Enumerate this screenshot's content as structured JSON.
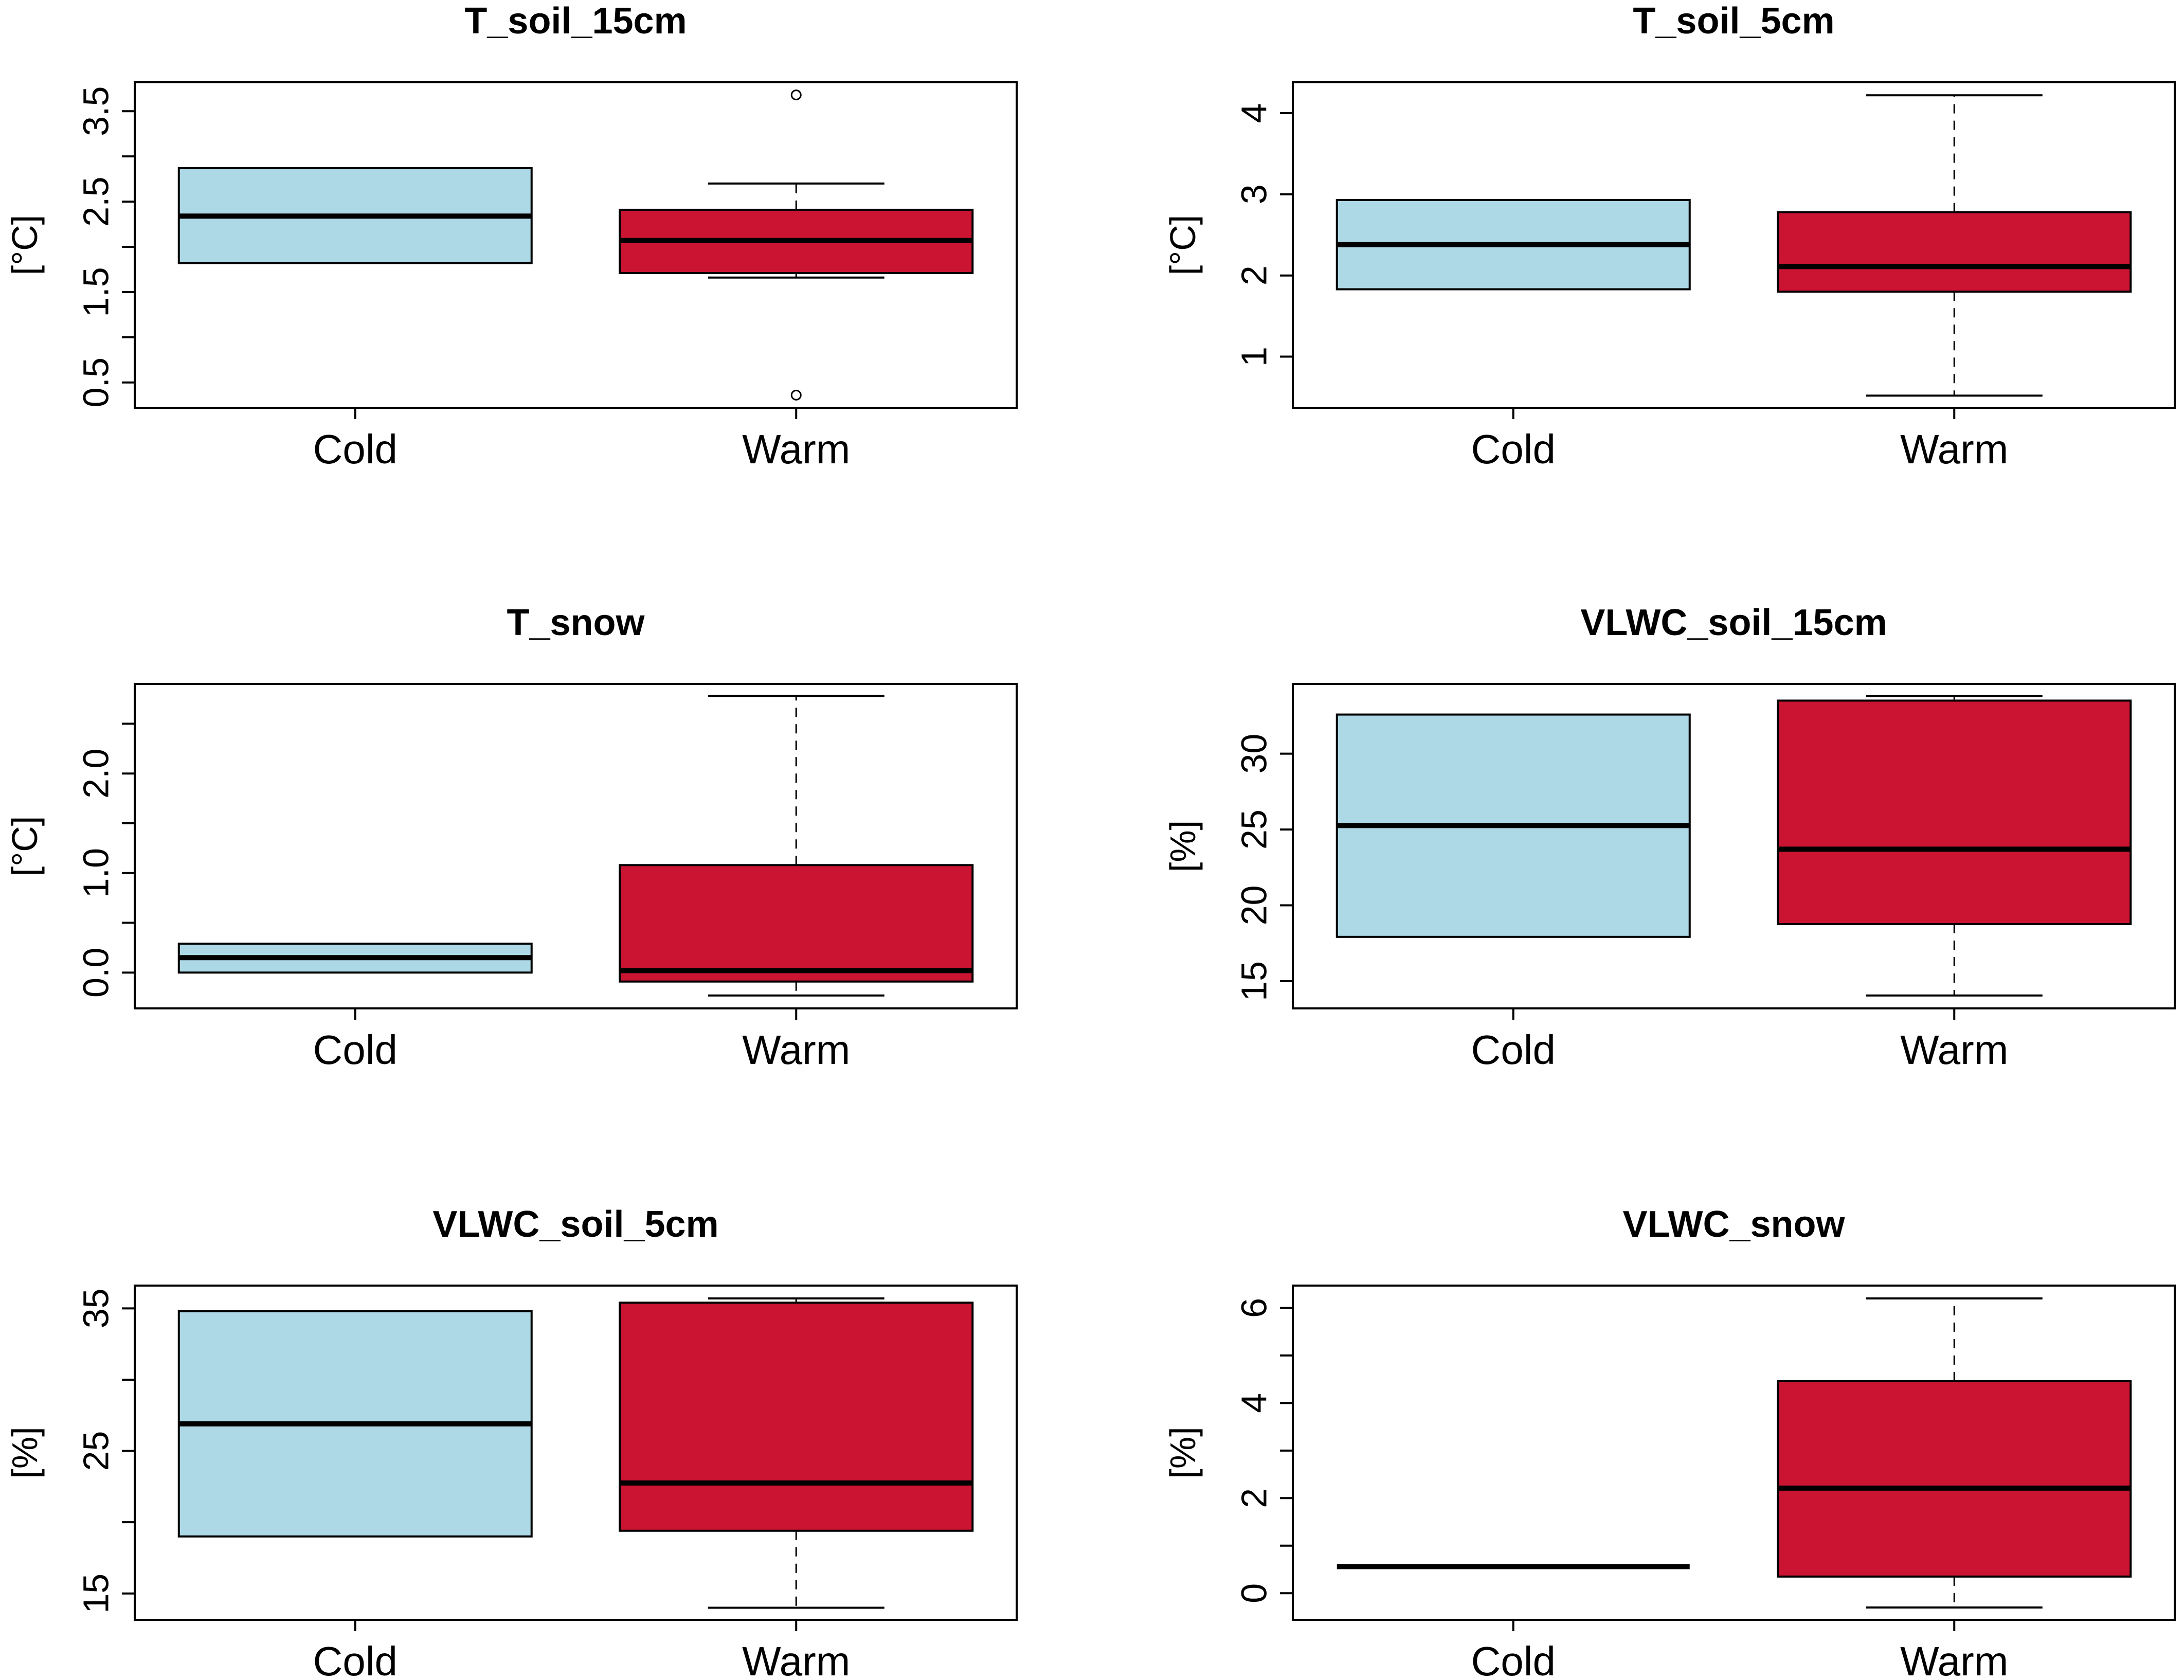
{
  "chart_data": [
    {
      "type": "boxplot",
      "title": "T_soil_15cm",
      "ylabel": "[°C]",
      "xlabel": "",
      "categories": [
        "Cold",
        "Warm"
      ],
      "ylim": [
        0.22,
        3.82
      ],
      "yticks": [
        0.5,
        1.0,
        1.5,
        2.0,
        2.5,
        3.0,
        3.5
      ],
      "ytick_labels": [
        "0.5",
        "",
        "1.5",
        "",
        "2.5",
        "",
        "3.5"
      ],
      "series": [
        {
          "name": "Cold",
          "color": "#ADD8E6",
          "whisker_low": 1.82,
          "q1": 1.82,
          "median": 2.34,
          "q3": 2.87,
          "whisker_high": 2.87,
          "outliers": []
        },
        {
          "name": "Warm",
          "color": "#CA1432",
          "whisker_low": 1.66,
          "q1": 1.71,
          "median": 2.07,
          "q3": 2.41,
          "whisker_high": 2.7,
          "outliers": [
            3.68,
            0.36
          ]
        }
      ]
    },
    {
      "type": "boxplot",
      "title": "T_soil_5cm",
      "ylabel": "[°C]",
      "xlabel": "",
      "categories": [
        "Cold",
        "Warm"
      ],
      "ylim": [
        0.37,
        4.38
      ],
      "yticks": [
        1,
        2,
        3,
        4
      ],
      "ytick_labels": [
        "1",
        "2",
        "3",
        "4"
      ],
      "series": [
        {
          "name": "Cold",
          "color": "#ADD8E6",
          "whisker_low": 1.83,
          "q1": 1.83,
          "median": 2.38,
          "q3": 2.93,
          "whisker_high": 2.93,
          "outliers": []
        },
        {
          "name": "Warm",
          "color": "#CA1432",
          "whisker_low": 0.52,
          "q1": 1.8,
          "median": 2.11,
          "q3": 2.78,
          "whisker_high": 4.22,
          "outliers": []
        }
      ]
    },
    {
      "type": "boxplot",
      "title": "T_snow",
      "ylabel": "[°C]",
      "xlabel": "",
      "categories": [
        "Cold",
        "Warm"
      ],
      "ylim": [
        -0.36,
        2.9
      ],
      "yticks": [
        0.0,
        0.5,
        1.0,
        1.5,
        2.0,
        2.5
      ],
      "ytick_labels": [
        "0.0",
        "",
        "1.0",
        "",
        "2.0",
        ""
      ],
      "series": [
        {
          "name": "Cold",
          "color": "#ADD8E6",
          "whisker_low": 0.0,
          "q1": 0.0,
          "median": 0.15,
          "q3": 0.29,
          "whisker_high": 0.29,
          "outliers": []
        },
        {
          "name": "Warm",
          "color": "#CA1432",
          "whisker_low": -0.23,
          "q1": -0.09,
          "median": 0.02,
          "q3": 1.08,
          "whisker_high": 2.78,
          "outliers": []
        }
      ]
    },
    {
      "type": "boxplot",
      "title": "VLWC_soil_15cm",
      "ylabel": "[%]",
      "xlabel": "",
      "categories": [
        "Cold",
        "Warm"
      ],
      "ylim": [
        13.2,
        34.6
      ],
      "yticks": [
        15,
        20,
        25,
        30
      ],
      "ytick_labels": [
        "15",
        "20",
        "25",
        "30"
      ],
      "series": [
        {
          "name": "Cold",
          "color": "#ADD8E6",
          "whisker_low": 17.92,
          "q1": 17.92,
          "median": 25.26,
          "q3": 32.58,
          "whisker_high": 32.58,
          "outliers": []
        },
        {
          "name": "Warm",
          "color": "#CA1432",
          "whisker_low": 14.05,
          "q1": 18.76,
          "median": 23.7,
          "q3": 33.5,
          "whisker_high": 33.8,
          "outliers": []
        }
      ]
    },
    {
      "type": "boxplot",
      "title": "VLWC_soil_5cm",
      "ylabel": "[%]",
      "xlabel": "",
      "categories": [
        "Cold",
        "Warm"
      ],
      "ylim": [
        13.15,
        36.6
      ],
      "yticks": [
        15,
        20,
        25,
        30,
        35
      ],
      "ytick_labels": [
        "15",
        "",
        "25",
        "",
        "35"
      ],
      "series": [
        {
          "name": "Cold",
          "color": "#ADD8E6",
          "whisker_low": 19.0,
          "q1": 19.0,
          "median": 26.9,
          "q3": 34.8,
          "whisker_high": 34.8,
          "outliers": []
        },
        {
          "name": "Warm",
          "color": "#CA1432",
          "whisker_low": 14.0,
          "q1": 19.4,
          "median": 22.75,
          "q3": 35.4,
          "whisker_high": 35.7,
          "outliers": []
        }
      ]
    },
    {
      "type": "boxplot",
      "title": "VLWC_snow",
      "ylabel": "[%]",
      "xlabel": "",
      "categories": [
        "Cold",
        "Warm"
      ],
      "ylim": [
        -0.56,
        6.47
      ],
      "yticks": [
        0,
        1,
        2,
        3,
        4,
        5,
        6
      ],
      "ytick_labels": [
        "0",
        "",
        "2",
        "",
        "4",
        "",
        "6"
      ],
      "series": [
        {
          "name": "Cold",
          "color": "#ADD8E6",
          "whisker_low": 0.56,
          "q1": 0.56,
          "median": 0.56,
          "q3": 0.56,
          "whisker_high": 0.56,
          "outliers": []
        },
        {
          "name": "Warm",
          "color": "#CA1432",
          "whisker_low": -0.3,
          "q1": 0.35,
          "median": 2.21,
          "q3": 4.46,
          "whisker_high": 6.2,
          "outliers": []
        }
      ]
    }
  ]
}
